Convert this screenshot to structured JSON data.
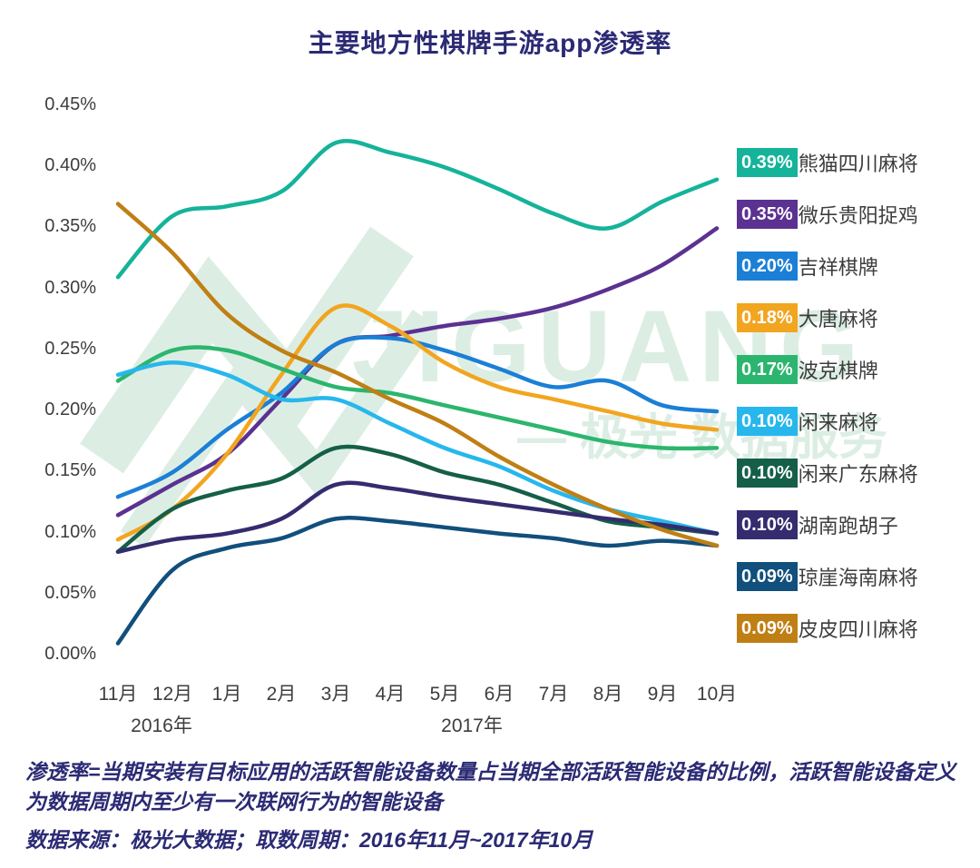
{
  "title": "主要地方性棋牌手游app渗透率",
  "watermark": {
    "brand": "JIGUANG",
    "caption": "— 极光 数据服务",
    "color": "#dceee4"
  },
  "footnote": {
    "definition": "渗透率=当期安装有目标应用的活跃智能设备数量占当期全部活跃智能设备的比例，活跃智能设备定义为数据周期内至少有一次联网行为的智能设备",
    "source": "数据来源：极光大数据；取数周期：2016年11月~2017年10月"
  },
  "colors": {
    "title": "#2b2a74",
    "footnote": "#2b2a74",
    "axis_text": "#3d3d3d",
    "background": "#ffffff",
    "watermark": "#dceee4"
  },
  "chart_data": {
    "type": "line",
    "title": "主要地方性棋牌手游app渗透率",
    "x_months": [
      "11月",
      "12月",
      "1月",
      "2月",
      "3月",
      "4月",
      "5月",
      "6月",
      "7月",
      "8月",
      "9月",
      "10月"
    ],
    "x_years": [
      "2016年",
      "2017年"
    ],
    "y_unit": "%",
    "ylim": [
      0,
      0.45
    ],
    "y_tick_step": 0.05,
    "grid": false,
    "legend_position": "right",
    "series": [
      {
        "name": "熊猫四川麻将",
        "legend_value": "0.39%",
        "color": "#15b39a",
        "values": [
          0.31,
          0.36,
          0.368,
          0.38,
          0.42,
          0.412,
          0.4,
          0.382,
          0.362,
          0.35,
          0.372,
          0.39
        ]
      },
      {
        "name": "微乐贵阳捉鸡",
        "legend_value": "0.35%",
        "color": "#5b3191",
        "values": [
          0.115,
          0.14,
          0.165,
          0.21,
          0.255,
          0.262,
          0.27,
          0.276,
          0.285,
          0.3,
          0.32,
          0.35
        ]
      },
      {
        "name": "吉祥棋牌",
        "legend_value": "0.20%",
        "color": "#1b7fd6",
        "values": [
          0.13,
          0.15,
          0.185,
          0.215,
          0.255,
          0.26,
          0.25,
          0.235,
          0.22,
          0.225,
          0.205,
          0.2
        ]
      },
      {
        "name": "大唐麻将",
        "legend_value": "0.18%",
        "color": "#f2a51f",
        "values": [
          0.095,
          0.12,
          0.165,
          0.23,
          0.285,
          0.27,
          0.24,
          0.22,
          0.21,
          0.2,
          0.19,
          0.185
        ]
      },
      {
        "name": "波克棋牌",
        "legend_value": "0.17%",
        "color": "#2cb56e",
        "values": [
          0.225,
          0.25,
          0.25,
          0.235,
          0.22,
          0.215,
          0.205,
          0.195,
          0.185,
          0.175,
          0.17,
          0.17
        ]
      },
      {
        "name": "闲来麻将",
        "legend_value": "0.10%",
        "color": "#27b7ec",
        "values": [
          0.23,
          0.24,
          0.23,
          0.21,
          0.21,
          0.19,
          0.17,
          0.155,
          0.135,
          0.12,
          0.11,
          0.1
        ]
      },
      {
        "name": "闲来广东麻将",
        "legend_value": "0.10%",
        "color": "#155f49",
        "values": [
          0.085,
          0.12,
          0.135,
          0.145,
          0.17,
          0.165,
          0.15,
          0.14,
          0.125,
          0.11,
          0.105,
          0.1
        ]
      },
      {
        "name": "湖南跑胡子",
        "legend_value": "0.10%",
        "color": "#342c6e",
        "values": [
          0.085,
          0.095,
          0.1,
          0.112,
          0.14,
          0.137,
          0.13,
          0.124,
          0.118,
          0.112,
          0.107,
          0.1
        ]
      },
      {
        "name": "琼崖海南麻将",
        "legend_value": "0.09%",
        "color": "#114f7c",
        "values": [
          0.01,
          0.07,
          0.088,
          0.096,
          0.112,
          0.11,
          0.105,
          0.1,
          0.096,
          0.09,
          0.094,
          0.09
        ]
      },
      {
        "name": "皮皮四川麻将",
        "legend_value": "0.09%",
        "color": "#c07f14",
        "values": [
          0.37,
          0.33,
          0.28,
          0.25,
          0.232,
          0.21,
          0.19,
          0.163,
          0.14,
          0.12,
          0.103,
          0.09
        ]
      }
    ]
  }
}
